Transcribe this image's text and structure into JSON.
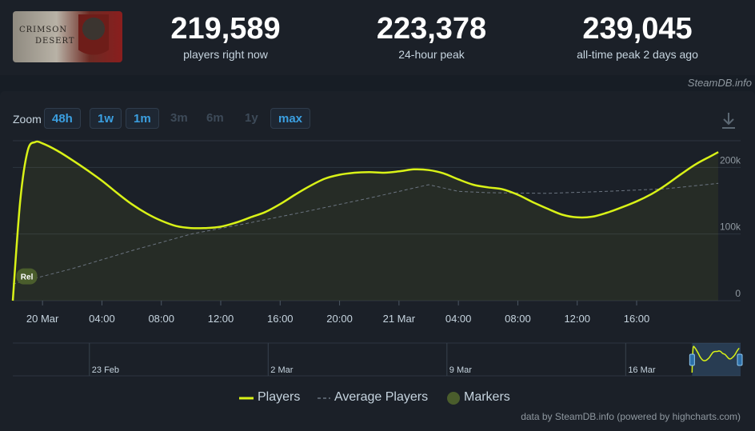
{
  "header": {
    "game_image_text_1": "CRIMSON",
    "game_image_text_2": "DESERT",
    "stats": [
      {
        "value": "219,589",
        "label": "players right now"
      },
      {
        "value": "223,378",
        "label": "24-hour peak"
      },
      {
        "value": "239,045",
        "label": "all-time peak 2 days ago"
      }
    ],
    "source": "SteamDB.info"
  },
  "zoom": {
    "label": "Zoom",
    "buttons": [
      {
        "label": "48h",
        "enabled": true
      },
      {
        "label": "1w",
        "enabled": true
      },
      {
        "label": "1m",
        "enabled": true
      },
      {
        "label": "3m",
        "enabled": false
      },
      {
        "label": "6m",
        "enabled": false
      },
      {
        "label": "1y",
        "enabled": false
      },
      {
        "label": "max",
        "enabled": true
      }
    ]
  },
  "colors": {
    "players": "#d9f217",
    "average": "#6b7480",
    "markers": "#4a5d2c",
    "grid": "#2c343f"
  },
  "chart_data": {
    "type": "line",
    "x_unit": "hours after 19 Mar 18:00",
    "x_range": [
      0,
      49
    ],
    "ylim": [
      0,
      240000
    ],
    "y_ticks": [
      0,
      100000,
      200000
    ],
    "y_tick_labels": [
      "0",
      "100k",
      "200k"
    ],
    "x_ticks": [
      {
        "x": 2,
        "label": "20 Mar"
      },
      {
        "x": 6,
        "label": "04:00"
      },
      {
        "x": 10,
        "label": "08:00"
      },
      {
        "x": 14,
        "label": "12:00"
      },
      {
        "x": 18,
        "label": "16:00"
      },
      {
        "x": 22,
        "label": "20:00"
      },
      {
        "x": 26,
        "label": "21 Mar"
      },
      {
        "x": 30,
        "label": "04:00"
      },
      {
        "x": 34,
        "label": "08:00"
      },
      {
        "x": 38,
        "label": "12:00"
      },
      {
        "x": 42,
        "label": "16:00"
      }
    ],
    "series": [
      {
        "name": "Players",
        "x": [
          0,
          0.5,
          1,
          1.5,
          2,
          3,
          4,
          5,
          6,
          7,
          8,
          9,
          10,
          11,
          12,
          13,
          14,
          15,
          16,
          17,
          18,
          19,
          20,
          21,
          22,
          23,
          24,
          25,
          26,
          27,
          28,
          29,
          30,
          31,
          32,
          33,
          34,
          35,
          36,
          37,
          38,
          39,
          40,
          41,
          42,
          43,
          44,
          45,
          46,
          47,
          47.5
        ],
        "y": [
          0,
          150000,
          225000,
          238000,
          236000,
          225000,
          211000,
          196000,
          180000,
          162000,
          145000,
          131000,
          120000,
          112000,
          109000,
          109000,
          111000,
          117000,
          125000,
          133000,
          145000,
          159000,
          172000,
          183000,
          189000,
          192000,
          193000,
          192000,
          194000,
          197000,
          196000,
          191000,
          182000,
          174000,
          170000,
          167000,
          159000,
          148000,
          138000,
          129000,
          125000,
          126000,
          132000,
          140000,
          149000,
          160000,
          174000,
          190000,
          205000,
          217000,
          223000
        ]
      },
      {
        "name": "Average Players",
        "x": [
          0,
          4,
          8,
          12,
          16,
          20,
          24,
          28,
          30,
          32,
          36,
          40,
          44,
          47.5
        ],
        "y": [
          25000,
          48000,
          75000,
          100000,
          117000,
          135000,
          154000,
          174000,
          164000,
          162000,
          161000,
          164000,
          168000,
          176000
        ]
      }
    ],
    "markers": [
      {
        "x": 0.3,
        "label": "Rel"
      }
    ],
    "navigator": {
      "labels": [
        "23 Feb",
        "2 Mar",
        "9 Mar",
        "16 Mar"
      ],
      "label_days": [
        3,
        10,
        17,
        24
      ],
      "range_days": [
        0,
        28.5
      ],
      "selected_days": [
        26.6,
        28.5
      ]
    },
    "legend": {
      "position": "bottom",
      "items": [
        "Players",
        "Average Players",
        "Markers"
      ]
    },
    "grid": true
  },
  "credit": "data by SteamDB.info (powered by highcharts.com)"
}
